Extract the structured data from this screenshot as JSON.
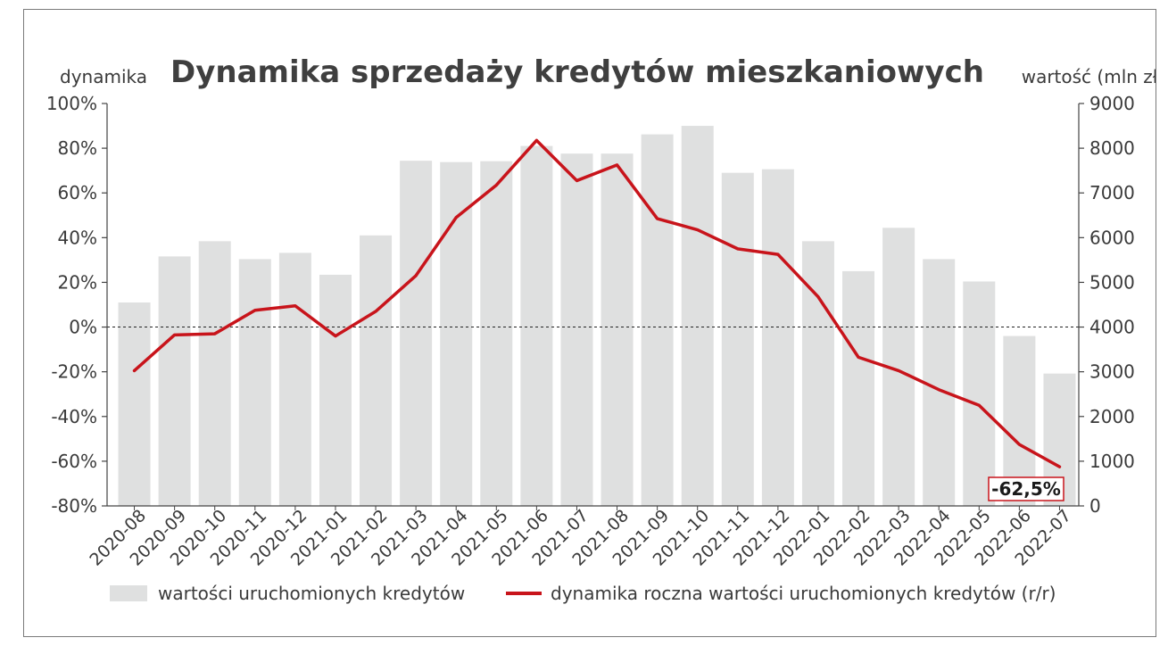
{
  "chart_data": {
    "type": "bar+line",
    "title": "Dynamika sprzedaży kredytów mieszkaniowych",
    "ylabel_left": "dynamika",
    "ylabel_right": "wartość (mln zł)",
    "categories": [
      "2020-08",
      "2020-09",
      "2020-10",
      "2020-11",
      "2020-12",
      "2021-01",
      "2021-02",
      "2021-03",
      "2021-04",
      "2021-05",
      "2021-06",
      "2021-07",
      "2021-08",
      "2021-09",
      "2021-10",
      "2021-11",
      "2021-12",
      "2022-01",
      "2022-02",
      "2022-03",
      "2022-04",
      "2022-05",
      "2022-06",
      "2022-07"
    ],
    "left_axis": {
      "ylim": [
        -80,
        100
      ],
      "ticks": [
        -80,
        -60,
        -40,
        -20,
        0,
        20,
        40,
        60,
        80,
        100
      ],
      "tick_labels": [
        "-80%",
        "-60%",
        "-40%",
        "-20%",
        "0%",
        "20%",
        "40%",
        "60%",
        "80%",
        "100%"
      ]
    },
    "right_axis": {
      "ylim": [
        0,
        9000
      ],
      "ticks": [
        0,
        1000,
        2000,
        3000,
        4000,
        5000,
        6000,
        7000,
        8000,
        9000
      ],
      "tick_labels": [
        "0",
        "1000",
        "2000",
        "3000",
        "4000",
        "5000",
        "6000",
        "7000",
        "8000",
        "9000"
      ]
    },
    "series": [
      {
        "name": "wartości uruchomionych kredytów",
        "type": "bar",
        "axis": "right",
        "color": "#dfe0e0",
        "values": [
          4550,
          5580,
          5920,
          5520,
          5660,
          5170,
          6050,
          7720,
          7690,
          7710,
          8050,
          7880,
          7880,
          8310,
          8500,
          7450,
          7530,
          5920,
          5250,
          6220,
          5520,
          5020,
          3800,
          2960
        ]
      },
      {
        "name": "dynamika roczna wartości uruchomionych kredytów (r/r)",
        "type": "line",
        "axis": "left",
        "color": "#c8141b",
        "values": [
          -19.5,
          -3.5,
          -3,
          7.5,
          9.5,
          -4,
          7,
          23,
          49,
          63.5,
          83.5,
          65.5,
          72.5,
          48.5,
          43.5,
          35,
          32.5,
          13.5,
          -13.5,
          -19.5,
          -28,
          -35,
          -52.5,
          -62.5
        ]
      }
    ],
    "reference_line": {
      "value": 0,
      "style": "dashed"
    },
    "callout": {
      "category": "2022-07",
      "text": "-62,5%"
    },
    "legend_placement": "bottom"
  }
}
